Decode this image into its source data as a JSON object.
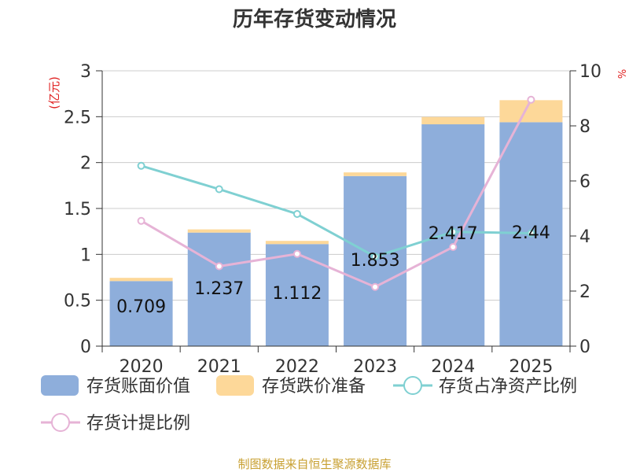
{
  "chart_data": {
    "type": "bar",
    "title": "历年存货变动情况",
    "y_left_unit": "(亿元)",
    "y_right_unit": "%",
    "categories": [
      "2020",
      "2021",
      "2022",
      "2023",
      "2024",
      "2025"
    ],
    "y_left": {
      "range": [
        0,
        3
      ],
      "ticks": [
        "0",
        "0.5",
        "1",
        "1.5",
        "2",
        "2.5",
        "3"
      ]
    },
    "y_right": {
      "range": [
        0,
        10
      ],
      "ticks": [
        "0",
        "2",
        "4",
        "6",
        "8",
        "10"
      ]
    },
    "series": [
      {
        "name": "存货账面价值",
        "kind": "bar",
        "axis": "left",
        "color": "#8eaedb",
        "values": [
          0.709,
          1.237,
          1.112,
          1.853,
          2.417,
          2.44
        ],
        "labels": [
          "0.709",
          "1.237",
          "1.112",
          "1.853",
          "2.417",
          "2.44"
        ]
      },
      {
        "name": "存货跌价准备",
        "kind": "bar-stacked",
        "axis": "left",
        "color": "#fdd899",
        "values": [
          0.035,
          0.035,
          0.035,
          0.04,
          0.08,
          0.24
        ]
      },
      {
        "name": "存货占净资产比例",
        "kind": "line",
        "axis": "right",
        "color": "#7fd0d2",
        "values": [
          6.55,
          5.7,
          4.8,
          3.25,
          4.15,
          4.1
        ]
      },
      {
        "name": "存货计提比例",
        "kind": "line",
        "axis": "right",
        "color": "#e6b3d6",
        "values": [
          4.55,
          2.9,
          3.35,
          2.15,
          3.6,
          8.95
        ]
      }
    ],
    "grid": true,
    "legend": "bottom"
  },
  "footer": {
    "source": "制图数据来自恒生聚源数据库"
  },
  "colors": {
    "title": "#333333",
    "unit": "#e02020",
    "axis": "#333333",
    "grid": "#cccccc",
    "source": "#c8a032"
  }
}
